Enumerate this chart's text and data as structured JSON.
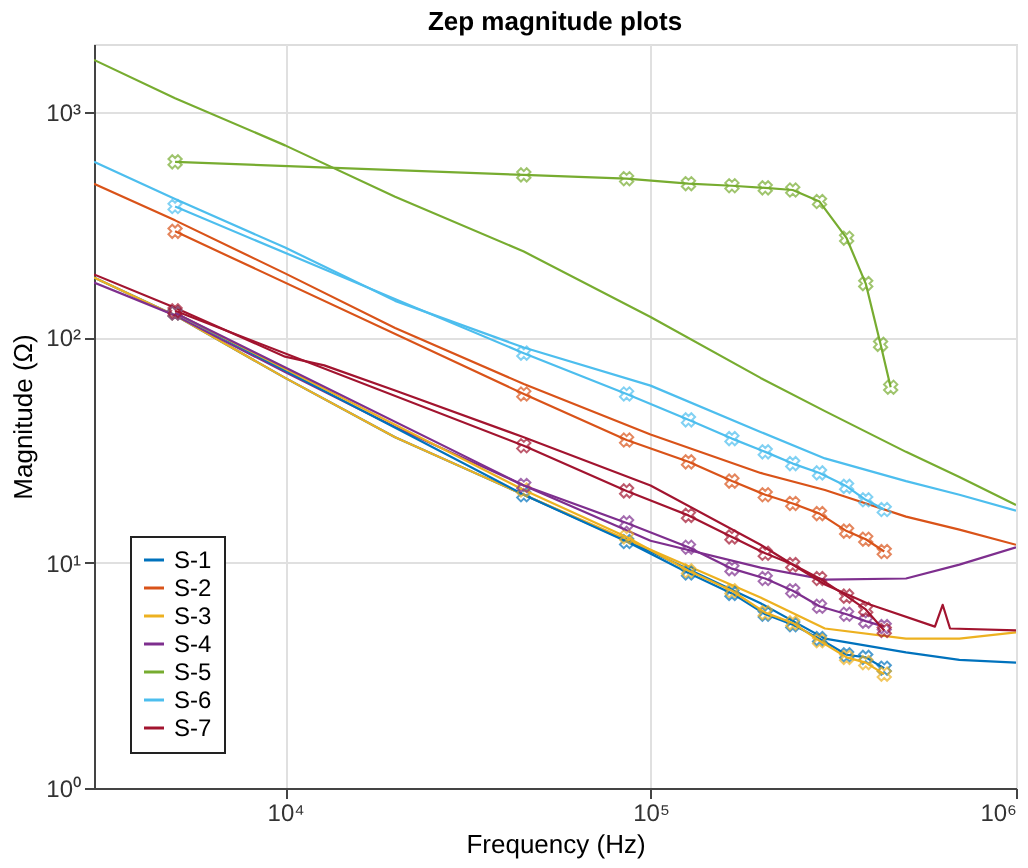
{
  "chart_data": {
    "type": "line",
    "title": "Zep magnitude plots",
    "xlabel": "Frequency (Hz)",
    "ylabel": "Magnitude (Ω)",
    "log": "xy",
    "grid": true,
    "legend": "bottom left",
    "xlim": [
      3000,
      1000000
    ],
    "ylim": [
      1,
      2000
    ],
    "xticks": [
      {
        "value": 10000,
        "label": "10⁴"
      },
      {
        "value": 100000,
        "label": "10⁵"
      },
      {
        "value": 1000000,
        "label": "10⁶"
      }
    ],
    "yticks": [
      {
        "value": 1,
        "label": "10⁰"
      },
      {
        "value": 10,
        "label": "10¹"
      },
      {
        "value": 100,
        "label": "10²"
      },
      {
        "value": 1000,
        "label": "10³"
      }
    ],
    "series": [
      {
        "name": "S-1",
        "color": "#0072bd",
        "marker": "none",
        "x": [
          3000,
          5000,
          10000,
          20000,
          45000,
          100000,
          200000,
          300000,
          500000,
          700000,
          1000000
        ],
        "values": [
          184,
          125,
          66,
          36,
          20,
          11.2,
          6.6,
          4.6,
          4.0,
          3.7,
          3.6
        ]
      },
      {
        "name": "S-2",
        "color": "#d95319",
        "marker": "none",
        "x": [
          3000,
          5000,
          10000,
          20000,
          45000,
          100000,
          200000,
          300000,
          500000,
          700000,
          1000000
        ],
        "values": [
          480,
          330,
          192,
          110,
          62,
          37,
          25,
          21,
          16,
          14,
          12
        ]
      },
      {
        "name": "S-3",
        "color": "#edb120",
        "marker": "none",
        "x": [
          3000,
          5000,
          10000,
          20000,
          45000,
          100000,
          200000,
          300000,
          500000,
          700000,
          1000000
        ],
        "values": [
          184,
          125,
          66,
          36,
          20,
          11.4,
          7.0,
          5.1,
          4.6,
          4.6,
          4.9
        ]
      },
      {
        "name": "S-4",
        "color": "#7e2f8e",
        "marker": "none",
        "x": [
          3000,
          5000,
          10000,
          20000,
          45000,
          100000,
          200000,
          300000,
          500000,
          700000,
          1000000
        ],
        "values": [
          175,
          125,
          70,
          40,
          22,
          12.5,
          9.5,
          8.4,
          8.5,
          9.8,
          11.7
        ]
      },
      {
        "name": "S-5",
        "color": "#77ac30",
        "marker": "none",
        "x": [
          3000,
          5000,
          10000,
          20000,
          45000,
          100000,
          200000,
          300000,
          500000,
          700000,
          1000000
        ],
        "values": [
          1700,
          1150,
          710,
          420,
          240,
          123,
          66,
          47,
          31,
          24,
          18
        ]
      },
      {
        "name": "S-6",
        "color": "#4dbeee",
        "marker": "none",
        "x": [
          3000,
          5000,
          10000,
          20000,
          45000,
          100000,
          200000,
          300000,
          500000,
          700000,
          1000000
        ],
        "values": [
          600,
          410,
          250,
          145,
          90,
          61,
          38,
          29,
          23,
          20,
          17
        ]
      },
      {
        "name": "S-7",
        "color": "#a2142f",
        "marker": "none",
        "x": [
          3000,
          5000,
          10000,
          12800,
          20000,
          45000,
          100000,
          200000,
          300000,
          400000,
          600000,
          630000,
          660000,
          1000000
        ],
        "values": [
          190,
          135,
          82,
          75,
          58,
          36,
          22,
          12,
          8,
          6.5,
          5.2,
          6.5,
          5.1,
          5.0
        ]
      },
      {
        "color": "#0072bd",
        "marker": "cross",
        "x": [
          5000,
          45000,
          86000,
          127000,
          167000,
          206000,
          245000,
          290000,
          344000,
          388000,
          436000
        ],
        "values": [
          128,
          20,
          12.4,
          9.0,
          7.3,
          5.9,
          5.3,
          4.6,
          3.9,
          3.8,
          3.4
        ]
      },
      {
        "color": "#d95319",
        "marker": "cross",
        "x": [
          5000,
          45000,
          86000,
          127000,
          167000,
          206000,
          245000,
          290000,
          344000,
          388000,
          436000
        ],
        "values": [
          295,
          56,
          35,
          28,
          23,
          20,
          18.3,
          16.5,
          13.8,
          12.7,
          11.2
        ]
      },
      {
        "color": "#edb120",
        "marker": "cross",
        "x": [
          5000,
          45000,
          86000,
          127000,
          167000,
          206000,
          245000,
          290000,
          344000,
          388000,
          436000
        ],
        "values": [
          128,
          21,
          13,
          9.2,
          7.5,
          6.0,
          5.4,
          4.5,
          3.8,
          3.6,
          3.2
        ]
      },
      {
        "color": "#7e2f8e",
        "marker": "cross",
        "x": [
          5000,
          45000,
          86000,
          127000,
          167000,
          206000,
          245000,
          290000,
          344000,
          388000,
          436000
        ],
        "values": [
          128,
          22,
          15,
          11.7,
          9.4,
          8.5,
          7.5,
          6.4,
          5.9,
          5.5,
          5.2
        ]
      },
      {
        "color": "#77ac30",
        "marker": "cross",
        "x": [
          5000,
          45000,
          86000,
          127000,
          167000,
          206000,
          245000,
          290000,
          344000,
          388000,
          426000,
          454000
        ],
        "values": [
          600,
          525,
          505,
          480,
          470,
          460,
          450,
          400,
          275,
          173,
          93,
          60
        ]
      },
      {
        "color": "#4dbeee",
        "marker": "cross",
        "x": [
          5000,
          45000,
          86000,
          127000,
          167000,
          206000,
          245000,
          290000,
          344000,
          388000,
          436000
        ],
        "values": [
          380,
          85,
          56,
          43,
          35.5,
          31,
          27.5,
          25,
          21.8,
          19,
          17.2
        ]
      },
      {
        "color": "#a2142f",
        "marker": "cross",
        "x": [
          5000,
          45000,
          86000,
          127000,
          167000,
          206000,
          245000,
          290000,
          344000,
          388000,
          436000
        ],
        "values": [
          131,
          33,
          20.8,
          16.2,
          13,
          11,
          9.8,
          8.5,
          7.1,
          6.2,
          5.0
        ]
      }
    ]
  }
}
